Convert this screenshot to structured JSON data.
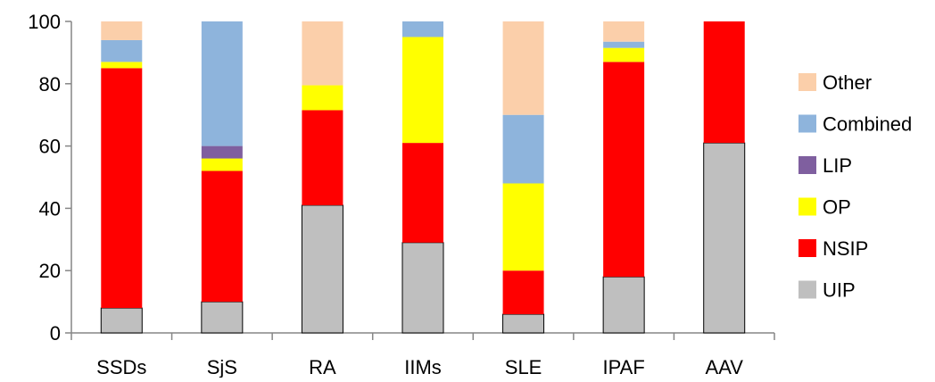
{
  "chart_data": {
    "type": "bar",
    "stacked": true,
    "categories": [
      "SSDs",
      "SjS",
      "RA",
      "IIMs",
      "SLE",
      "IPAF",
      "AAV"
    ],
    "ylim": [
      0,
      100
    ],
    "yticks": [
      0,
      20,
      40,
      60,
      80,
      100
    ],
    "xlabel": "",
    "ylabel": "",
    "title": "",
    "grid": false,
    "legend_position": "right",
    "series": [
      {
        "name": "UIP",
        "color": "#bfbfbf",
        "values": [
          8,
          10,
          41,
          29,
          6,
          18,
          61
        ]
      },
      {
        "name": "NSIP",
        "color": "#ff0000",
        "values": [
          77,
          42,
          30.5,
          32,
          14,
          69,
          39
        ]
      },
      {
        "name": "OP",
        "color": "#ffff00",
        "values": [
          2,
          4,
          8,
          34,
          28,
          4.5,
          0
        ]
      },
      {
        "name": "LIP",
        "color": "#7f5f9f",
        "values": [
          0,
          4,
          0,
          0,
          0,
          0,
          0
        ]
      },
      {
        "name": "Combined",
        "color": "#8eb4dc",
        "values": [
          7,
          40,
          0,
          5,
          22,
          2,
          0
        ]
      },
      {
        "name": "Other",
        "color": "#fbcfaa",
        "values": [
          6,
          0,
          20.5,
          0,
          30,
          6.5,
          0
        ]
      }
    ]
  }
}
